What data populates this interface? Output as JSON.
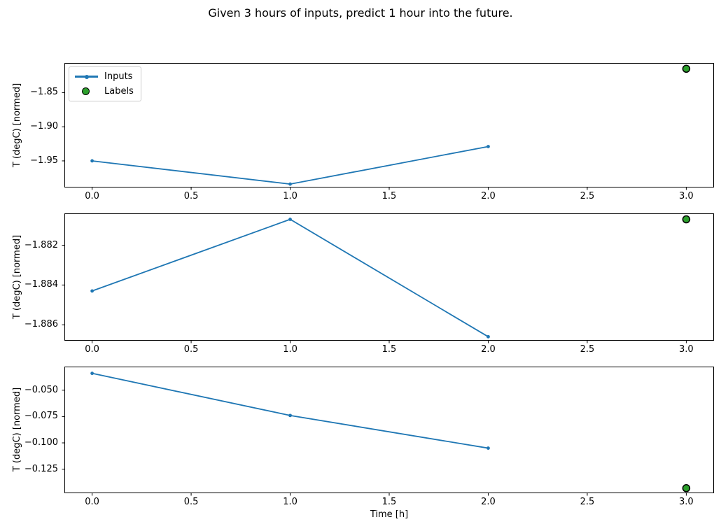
{
  "title": "Given 3 hours of inputs, predict 1 hour into the future.",
  "legend": {
    "position": "upper-left-of-first-subplot",
    "items": [
      {
        "label": "Inputs",
        "swatch": "line-with-dot"
      },
      {
        "label": "Labels",
        "swatch": "filled-circle"
      }
    ]
  },
  "colors": {
    "inputs": "#1f77b4",
    "labels": "#2ca02c",
    "labels_edge": "#000000",
    "axis": "#000000",
    "legend_border": "#cccccc",
    "background": "#ffffff"
  },
  "chart_data": [
    {
      "type": "line",
      "subplot": 1,
      "ylabel": "T (degC) [normed]",
      "grid": false,
      "series": [
        {
          "name": "Inputs",
          "style": "line+marker",
          "x": [
            0,
            1,
            2
          ],
          "y": [
            -1.95,
            -1.984,
            -1.929
          ]
        },
        {
          "name": "Labels",
          "style": "scatter",
          "x": [
            3
          ],
          "y": [
            -1.815
          ]
        }
      ],
      "xlim": [
        -0.14,
        3.14
      ],
      "ylim": [
        -1.989,
        -1.8065
      ],
      "xticks": {
        "values": [
          0,
          0.5,
          1,
          1.5,
          2,
          2.5,
          3
        ],
        "labels": [
          "0.0",
          "0.5",
          "1.0",
          "1.5",
          "2.0",
          "2.5",
          "3.0"
        ]
      },
      "yticks": {
        "values": [
          -1.85,
          -1.9,
          -1.95
        ],
        "labels": [
          "−1.85",
          "−1.90",
          "−1.95"
        ]
      }
    },
    {
      "type": "line",
      "subplot": 2,
      "ylabel": "T (degC) [normed]",
      "grid": false,
      "series": [
        {
          "name": "Inputs",
          "style": "line+marker",
          "x": [
            0,
            1,
            2
          ],
          "y": [
            -1.8843,
            -1.8807,
            -1.8866
          ]
        },
        {
          "name": "Labels",
          "style": "scatter",
          "x": [
            3
          ],
          "y": [
            -1.8807
          ]
        }
      ],
      "xlim": [
        -0.14,
        3.14
      ],
      "ylim": [
        -1.8868,
        -1.8804
      ],
      "xticks": {
        "values": [
          0,
          0.5,
          1,
          1.5,
          2,
          2.5,
          3
        ],
        "labels": [
          "0.0",
          "0.5",
          "1.0",
          "1.5",
          "2.0",
          "2.5",
          "3.0"
        ]
      },
      "yticks": {
        "values": [
          -1.882,
          -1.884,
          -1.886
        ],
        "labels": [
          "−1.882",
          "−1.884",
          "−1.886"
        ]
      }
    },
    {
      "type": "line",
      "subplot": 3,
      "ylabel": "T (degC) [normed]",
      "xlabel": "Time [h]",
      "grid": false,
      "series": [
        {
          "name": "Inputs",
          "style": "line+marker",
          "x": [
            0,
            1,
            2
          ],
          "y": [
            -0.034,
            -0.074,
            -0.105
          ]
        },
        {
          "name": "Labels",
          "style": "scatter",
          "x": [
            3
          ],
          "y": [
            -0.143
          ]
        }
      ],
      "xlim": [
        -0.14,
        3.14
      ],
      "ylim": [
        -0.1478,
        -0.0276
      ],
      "xticks": {
        "values": [
          0,
          0.5,
          1,
          1.5,
          2,
          2.5,
          3
        ],
        "labels": [
          "0.0",
          "0.5",
          "1.0",
          "1.5",
          "2.0",
          "2.5",
          "3.0"
        ]
      },
      "yticks": {
        "values": [
          -0.05,
          -0.075,
          -0.1,
          -0.125
        ],
        "labels": [
          "−0.050",
          "−0.075",
          "−0.100",
          "−0.125"
        ]
      }
    }
  ]
}
